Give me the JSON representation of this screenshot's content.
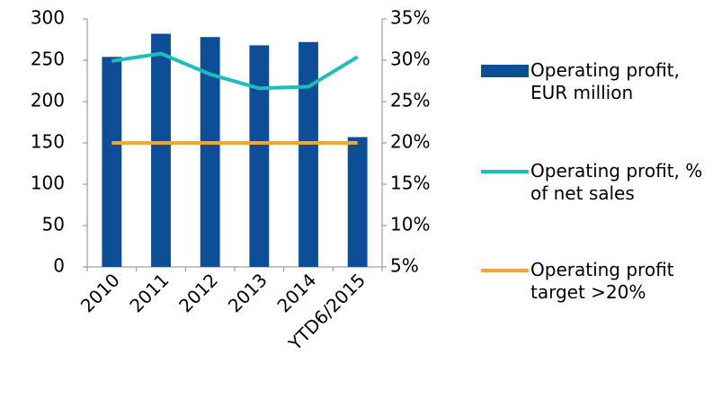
{
  "chart_data": {
    "type": "bar",
    "categories": [
      "2010",
      "2011",
      "2012",
      "2013",
      "2014",
      "YTD6/2015"
    ],
    "series": [
      {
        "name": "Operating profit, EUR million",
        "type": "bar",
        "color": "#0d4e96",
        "values": [
          254,
          282,
          278,
          268,
          272,
          157
        ]
      },
      {
        "name": "Operating profit, % of net sales",
        "type": "line",
        "axis": "y2",
        "color": "#1fbcbc",
        "values": [
          29.9,
          30.8,
          28.3,
          26.6,
          26.8,
          30.4
        ]
      },
      {
        "name": "Operating profit target >20%",
        "type": "line",
        "axis": "y2",
        "color": "#f7a62a",
        "values": [
          20,
          20,
          20,
          20,
          20,
          20
        ]
      }
    ],
    "ylim": [
      0,
      300
    ],
    "yticks": [
      0,
      50,
      100,
      150,
      200,
      250,
      300
    ],
    "y2lim": [
      5,
      35
    ],
    "y2ticks": [
      {
        "value": 5,
        "label": "5%"
      },
      {
        "value": 10,
        "label": "10%"
      },
      {
        "value": 15,
        "label": "15%"
      },
      {
        "value": 20,
        "label": "20%"
      },
      {
        "value": 25,
        "label": "25%"
      },
      {
        "value": 30,
        "label": "30%"
      },
      {
        "value": 35,
        "label": "35%"
      }
    ],
    "legend": "right"
  }
}
